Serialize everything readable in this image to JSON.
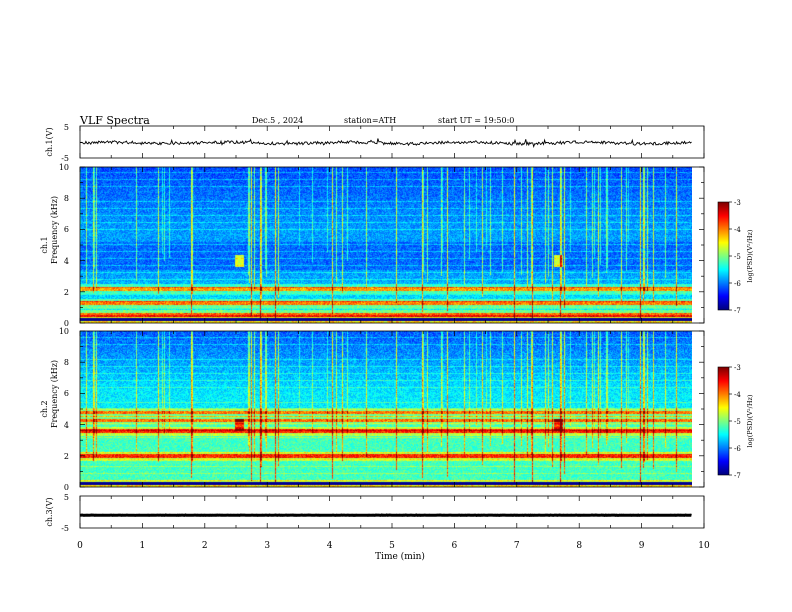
{
  "header": {
    "title": "VLF Spectra",
    "date": "Dec.5 , 2024",
    "station": "station=ATH",
    "start": "start UT = 19:50:0"
  },
  "chart_data": [
    {
      "type": "line",
      "panel": "ch1-waveform",
      "ylabel": "ch.1(V)",
      "ylim": [
        -5,
        5
      ],
      "yticks": [
        "5",
        "-5"
      ],
      "xlim": [
        0,
        10
      ],
      "note_values": "noisy trace around -0.3 V with spikes to about +0.8 V / -1 V",
      "baseline_v": -0.3,
      "x_end_min": 9.8
    },
    {
      "type": "heatmap",
      "panel": "ch1-spectrogram",
      "ylabel_line1": "ch.1",
      "ylabel_line2": "Frequency (kHz)",
      "ylim": [
        0,
        10
      ],
      "yticks": [
        "0",
        "2",
        "4",
        "6",
        "8",
        "10"
      ],
      "xlim": [
        0,
        9.8
      ],
      "colorbar": {
        "label": "log(PSD)(V²/Hz)",
        "range": [
          -7,
          -3
        ],
        "ticks": [
          "-3",
          "-4",
          "-5",
          "-6",
          "-7"
        ]
      },
      "features": {
        "strong_bands_khz": [
          0.2,
          0.55,
          1.3,
          2.2
        ],
        "quiet_band_khz": [
          3.4,
          5.2
        ],
        "bursts_min": [
          2.55,
          7.65
        ],
        "burst_freq_khz": 4.0
      }
    },
    {
      "type": "heatmap",
      "panel": "ch2-spectrogram",
      "ylabel_line1": "ch.2",
      "ylabel_line2": "Frequency (kHz)",
      "ylim": [
        0,
        10
      ],
      "yticks": [
        "0",
        "2",
        "4",
        "6",
        "8",
        "10"
      ],
      "xlim": [
        0,
        9.8
      ],
      "colorbar": {
        "label": "log(PSD)(V²/Hz)",
        "range": [
          -7,
          -3
        ],
        "ticks": [
          "-3",
          "-4",
          "-5",
          "-6",
          "-7"
        ]
      },
      "features": {
        "strong_bands_khz": [
          0.2,
          2.0,
          3.6,
          4.3,
          4.8
        ],
        "quiet_band_khz": [
          6.0,
          10.0
        ],
        "bursts_min": [
          2.55,
          7.65
        ],
        "burst_freq_khz": 4.0
      }
    },
    {
      "type": "line",
      "panel": "ch3-waveform",
      "ylabel": "ch.3(V)",
      "ylim": [
        -5,
        5
      ],
      "yticks": [
        "5",
        "-5"
      ],
      "xlim": [
        0,
        10
      ],
      "xlabel": "Time (min)",
      "xticks": [
        "0",
        "1",
        "2",
        "3",
        "4",
        "5",
        "6",
        "7",
        "8",
        "9",
        "10"
      ],
      "baseline_v": -1.0,
      "x_end_min": 9.8
    }
  ]
}
